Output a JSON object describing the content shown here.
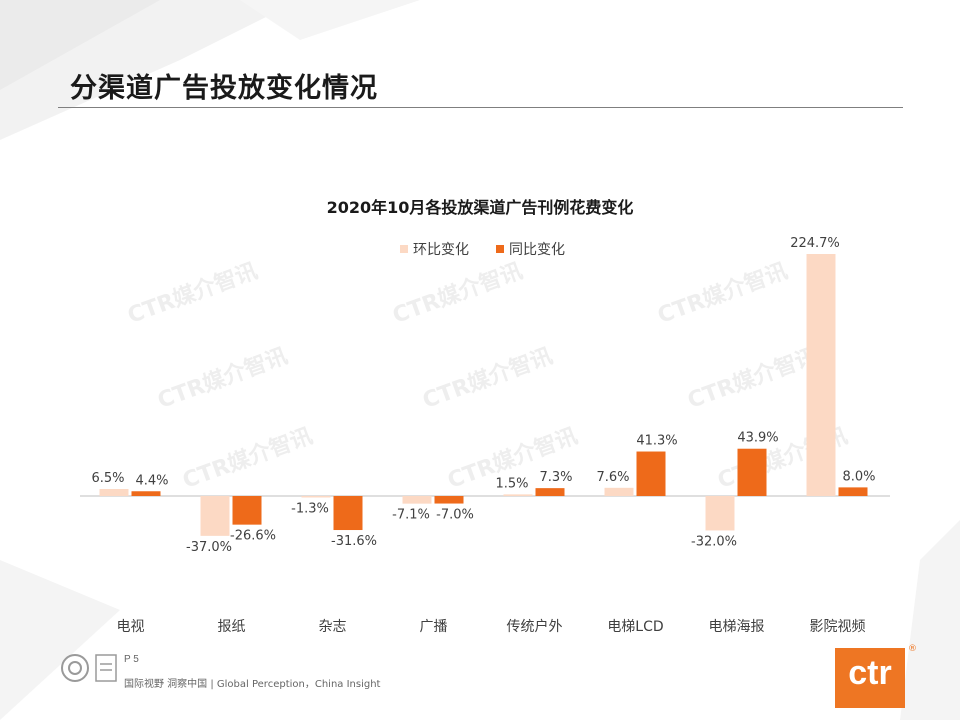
{
  "slide": {
    "title": "分渠道广告投放变化情况",
    "page_number": "P 5",
    "tagline": "国际视野 洞察中国 | Global Perception，China Insight",
    "logo_text": "ctr",
    "registered_mark": "®",
    "watermark_text": "CTR媒介智讯"
  },
  "colors": {
    "mom": "#FCD9C4",
    "yoy": "#EE6A1A",
    "axis": "#bfbfbf",
    "text": "#404040",
    "logo": "#EE7623"
  },
  "chart_data": {
    "type": "bar",
    "title": "2020年10月各投放渠道广告刊例花费变化",
    "categories": [
      "电视",
      "报纸",
      "杂志",
      "广播",
      "传统户外",
      "电梯LCD",
      "电梯海报",
      "影院视频"
    ],
    "series": [
      {
        "name": "环比变化",
        "values": [
          6.5,
          -37.0,
          -1.3,
          -7.1,
          1.5,
          7.6,
          -32.0,
          224.7
        ],
        "labels": [
          "6.5%",
          "-37.0%",
          "-1.3%",
          "-7.1%",
          "1.5%",
          "7.6%",
          "-32.0%",
          "224.7%"
        ]
      },
      {
        "name": "同比变化",
        "values": [
          4.4,
          -26.6,
          -31.6,
          -7.0,
          7.3,
          41.3,
          43.9,
          8.0
        ],
        "labels": [
          "4.4%",
          "-26.6%",
          "-31.6%",
          "-7.0%",
          "7.3%",
          "41.3%",
          "43.9%",
          "8.0%"
        ]
      }
    ],
    "legend_position": "top",
    "grid": false,
    "yaxis_visible": false,
    "ylim": [
      -40,
      230
    ]
  }
}
